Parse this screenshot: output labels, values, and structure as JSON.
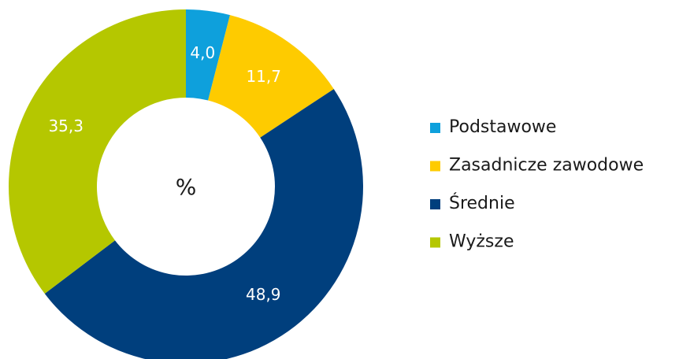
{
  "chart_data": {
    "type": "donut",
    "center_label": "%",
    "categories": [
      "Podstawowe",
      "Zasadnicze zawodowe",
      "Średnie",
      "Wyższe"
    ],
    "values": [
      4.0,
      11.7,
      48.9,
      35.3
    ],
    "value_labels": [
      "4,0",
      "11,7",
      "48,9",
      "35,3"
    ],
    "colors": [
      "#0ea0dc",
      "#fecb00",
      "#003f7d",
      "#b5c700"
    ],
    "legend": "right"
  }
}
